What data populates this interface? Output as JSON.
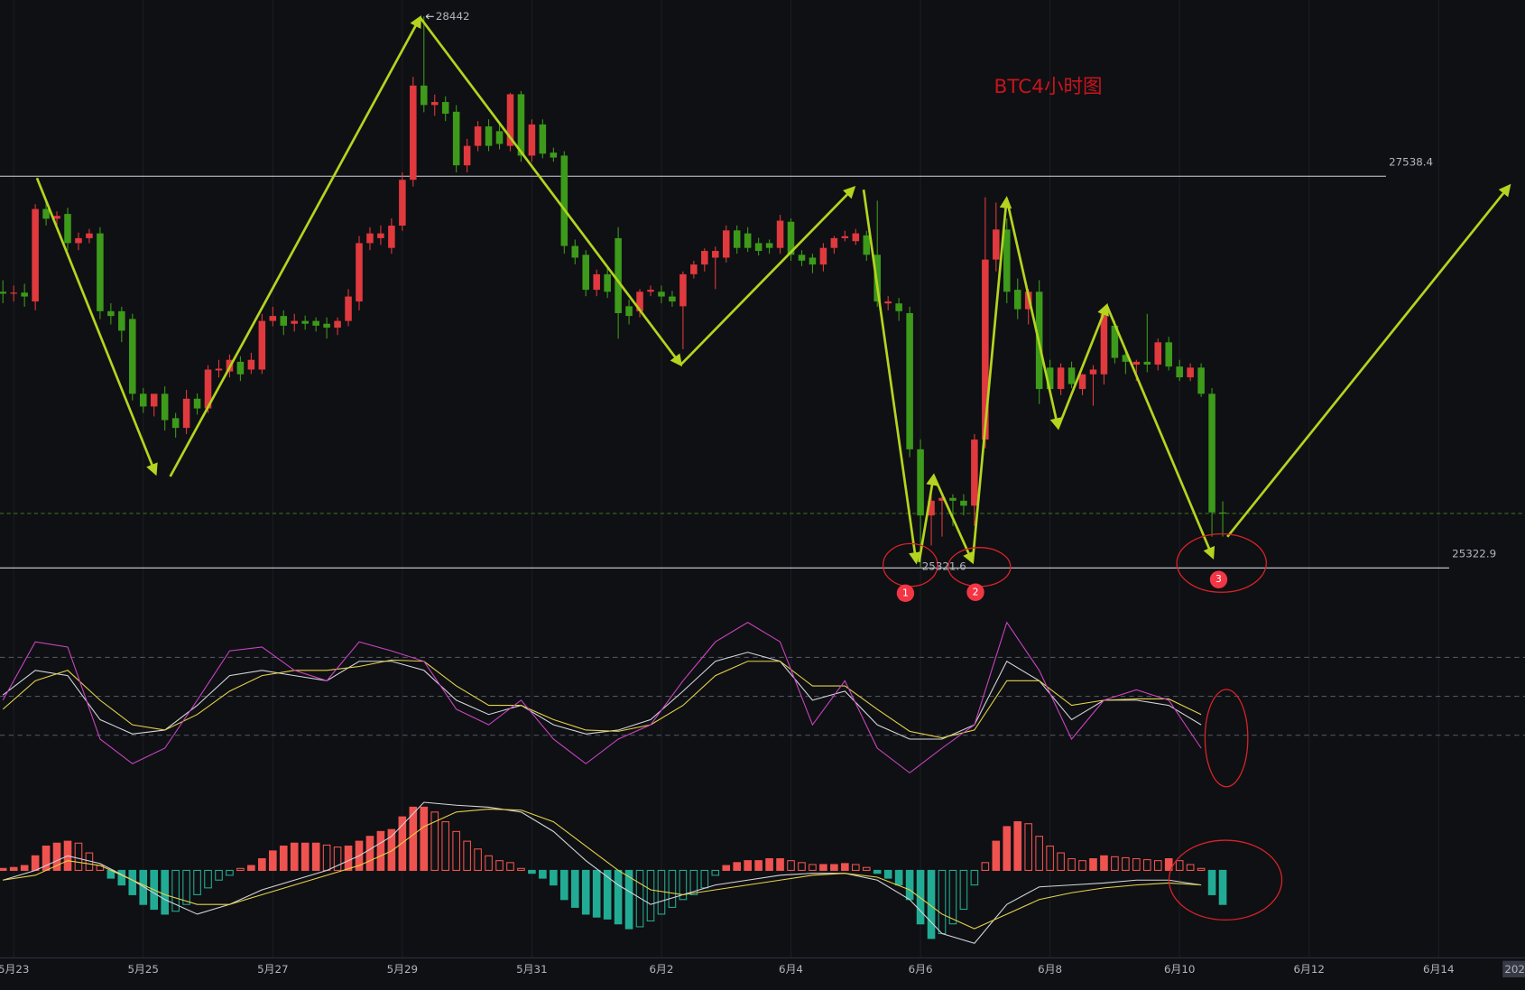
{
  "chart_data": [
    {
      "type": "candlestick",
      "title": "BTC4小时图",
      "up_color": "#e0393e",
      "down_color": "#3d9a1b",
      "xlim": [
        -0.27,
        141
      ],
      "ylim": [
        25125,
        28535
      ],
      "xticks": [
        {
          "value": 1,
          "label": "5月23"
        },
        {
          "value": 13,
          "label": "5月25"
        },
        {
          "value": 25,
          "label": "5月27"
        },
        {
          "value": 37,
          "label": "5月29"
        },
        {
          "value": 49,
          "label": "5月31"
        },
        {
          "value": 61,
          "label": "6月2"
        },
        {
          "value": 73,
          "label": "6月4"
        },
        {
          "value": 85,
          "label": "6月6"
        },
        {
          "value": 97,
          "label": "6月8"
        },
        {
          "value": 109,
          "label": "6月10"
        },
        {
          "value": 121,
          "label": "6月12"
        },
        {
          "value": 133,
          "label": "6月14"
        }
      ],
      "time_label": "202",
      "levels": [
        27538.4,
        25322.9
      ],
      "markers": [
        "1",
        "2",
        "3"
      ],
      "ohlc": [
        [
          26885,
          26950,
          26820,
          26874
        ],
        [
          26874,
          26920,
          26830,
          26880
        ],
        [
          26880,
          26930,
          26800,
          26858
        ],
        [
          26830,
          27380,
          26780,
          27353
        ],
        [
          27353,
          27400,
          27260,
          27298
        ],
        [
          27298,
          27340,
          27260,
          27314
        ],
        [
          27325,
          27360,
          27120,
          27160
        ],
        [
          27160,
          27220,
          27120,
          27188
        ],
        [
          27188,
          27240,
          27160,
          27215
        ],
        [
          27215,
          27250,
          26730,
          26775
        ],
        [
          26775,
          26820,
          26700,
          26748
        ],
        [
          26775,
          26800,
          26600,
          26665
        ],
        [
          26731,
          26760,
          26270,
          26308
        ],
        [
          26308,
          26340,
          26200,
          26236
        ],
        [
          26236,
          26300,
          26180,
          26308
        ],
        [
          26308,
          26350,
          26100,
          26159
        ],
        [
          26170,
          26200,
          26060,
          26115
        ],
        [
          26115,
          26330,
          26080,
          26280
        ],
        [
          26280,
          26310,
          26190,
          26225
        ],
        [
          26225,
          26470,
          26200,
          26445
        ],
        [
          26440,
          26500,
          26400,
          26450
        ],
        [
          26434,
          26530,
          26400,
          26500
        ],
        [
          26489,
          26520,
          26380,
          26418
        ],
        [
          26445,
          26540,
          26420,
          26500
        ],
        [
          26445,
          26760,
          26420,
          26720
        ],
        [
          26720,
          26800,
          26690,
          26748
        ],
        [
          26748,
          26780,
          26640,
          26693
        ],
        [
          26704,
          26760,
          26660,
          26720
        ],
        [
          26720,
          26750,
          26670,
          26704
        ],
        [
          26720,
          26740,
          26660,
          26693
        ],
        [
          26704,
          26740,
          26620,
          26682
        ],
        [
          26682,
          26740,
          26640,
          26720
        ],
        [
          26720,
          26900,
          26690,
          26858
        ],
        [
          26830,
          27200,
          26780,
          27160
        ],
        [
          27160,
          27250,
          27120,
          27215
        ],
        [
          27188,
          27260,
          27150,
          27215
        ],
        [
          27133,
          27300,
          27100,
          27259
        ],
        [
          27259,
          27560,
          27230,
          27518
        ],
        [
          27518,
          28100,
          27480,
          28051
        ],
        [
          28051,
          28442,
          27900,
          27941
        ],
        [
          27941,
          28000,
          27880,
          27958
        ],
        [
          27958,
          27990,
          27850,
          27892
        ],
        [
          27903,
          27940,
          27560,
          27600
        ],
        [
          27600,
          27750,
          27560,
          27710
        ],
        [
          27710,
          27850,
          27680,
          27820
        ],
        [
          27820,
          27860,
          27680,
          27710
        ],
        [
          27793,
          27830,
          27690,
          27721
        ],
        [
          27710,
          28010,
          27680,
          28002
        ],
        [
          28002,
          28020,
          27620,
          27655
        ],
        [
          27655,
          27860,
          27620,
          27831
        ],
        [
          27831,
          27860,
          27640,
          27666
        ],
        [
          27672,
          27700,
          27620,
          27644
        ],
        [
          27655,
          27680,
          27100,
          27144
        ],
        [
          27144,
          27180,
          27040,
          27078
        ],
        [
          27094,
          27120,
          26860,
          26896
        ],
        [
          26896,
          27010,
          26860,
          26984
        ],
        [
          26984,
          27020,
          26850,
          26885
        ],
        [
          27188,
          27250,
          26620,
          26764
        ],
        [
          26803,
          26840,
          26700,
          26748
        ],
        [
          26775,
          26900,
          26740,
          26885
        ],
        [
          26885,
          26920,
          26860,
          26896
        ],
        [
          26885,
          26920,
          26820,
          26858
        ],
        [
          26858,
          26890,
          26800,
          26830
        ],
        [
          26803,
          27000,
          26560,
          26984
        ],
        [
          26984,
          27060,
          26960,
          27039
        ],
        [
          27039,
          27130,
          27000,
          27116
        ],
        [
          27078,
          27140,
          26900,
          27116
        ],
        [
          27078,
          27260,
          27050,
          27232
        ],
        [
          27232,
          27260,
          27100,
          27133
        ],
        [
          27215,
          27250,
          27110,
          27133
        ],
        [
          27160,
          27190,
          27090,
          27116
        ],
        [
          27160,
          27180,
          27100,
          27133
        ],
        [
          27133,
          27320,
          27100,
          27287
        ],
        [
          27281,
          27300,
          27060,
          27094
        ],
        [
          27094,
          27120,
          27030,
          27061
        ],
        [
          27078,
          27100,
          26990,
          27039
        ],
        [
          27039,
          27160,
          27000,
          27133
        ],
        [
          27133,
          27200,
          27100,
          27188
        ],
        [
          27188,
          27230,
          27170,
          27199
        ],
        [
          27171,
          27240,
          27150,
          27215
        ],
        [
          27204,
          27230,
          27060,
          27094
        ],
        [
          27094,
          27400,
          26800,
          26830
        ],
        [
          26819,
          26860,
          26780,
          26830
        ],
        [
          26819,
          26850,
          26720,
          26775
        ],
        [
          26764,
          26800,
          25950,
          25994
        ],
        [
          25994,
          26050,
          25321.6,
          25620
        ],
        [
          25620,
          25760,
          25450,
          25703
        ],
        [
          25703,
          25740,
          25500,
          25719
        ],
        [
          25719,
          25740,
          25560,
          25703
        ],
        [
          25703,
          25740,
          25620,
          25675
        ],
        [
          25675,
          26080,
          25560,
          26049
        ],
        [
          26049,
          27420,
          26000,
          27067
        ],
        [
          27067,
          27390,
          27000,
          27237
        ],
        [
          27237,
          27300,
          26820,
          26885
        ],
        [
          26896,
          26960,
          26730,
          26786
        ],
        [
          26786,
          26900,
          26700,
          26885
        ],
        [
          26885,
          26950,
          26250,
          26335
        ],
        [
          26456,
          26500,
          26300,
          26335
        ],
        [
          26335,
          26480,
          26300,
          26456
        ],
        [
          26456,
          26490,
          26340,
          26363
        ],
        [
          26335,
          26420,
          26300,
          26418
        ],
        [
          26418,
          26470,
          26240,
          26445
        ],
        [
          26418,
          26800,
          26360,
          26775
        ],
        [
          26693,
          26720,
          26480,
          26511
        ],
        [
          26528,
          26560,
          26420,
          26489
        ],
        [
          26473,
          26500,
          26380,
          26489
        ],
        [
          26489,
          26760,
          26430,
          26473
        ],
        [
          26473,
          26620,
          26440,
          26599
        ],
        [
          26599,
          26630,
          26440,
          26462
        ],
        [
          26462,
          26500,
          26380,
          26401
        ],
        [
          26401,
          26480,
          26380,
          26456
        ],
        [
          26456,
          26480,
          26290,
          26308
        ],
        [
          26308,
          26340,
          25500,
          25637
        ],
        [
          25637,
          25700,
          25500,
          25631
        ]
      ]
    },
    {
      "type": "line",
      "ylim": [
        -13,
        114.5
      ],
      "levels": [
        80,
        50,
        20
      ],
      "x": [
        0,
        3,
        6,
        9,
        12,
        15,
        18,
        21,
        24,
        27,
        30,
        33,
        36,
        39,
        42,
        45,
        48,
        51,
        54,
        57,
        60,
        63,
        66,
        69,
        72,
        75,
        78,
        81,
        84,
        87,
        90,
        93,
        96,
        99,
        102,
        105,
        108,
        111
      ],
      "series": [
        {
          "color": "#d4d6dc",
          "values": [
            51,
            70,
            66,
            32,
            21,
            24,
            43,
            66,
            70,
            66,
            62,
            77,
            77,
            70,
            47,
            36,
            43,
            28,
            21,
            24,
            32,
            54,
            77,
            84,
            77,
            47,
            54,
            28,
            17,
            17,
            28,
            77,
            62,
            32,
            47,
            47,
            43,
            28
          ]
        },
        {
          "color": "#e6d34a",
          "values": [
            40,
            62,
            70,
            47,
            28,
            24,
            36,
            54,
            66,
            70,
            70,
            73,
            78,
            77,
            58,
            43,
            43,
            32,
            24,
            23,
            28,
            43,
            66,
            77,
            77,
            58,
            58,
            40,
            23,
            18,
            24,
            62,
            62,
            43,
            47,
            48,
            48,
            36
          ]
        },
        {
          "color": "#cc44c4",
          "values": [
            47,
            92,
            88,
            17,
            -2,
            10,
            47,
            85,
            88,
            70,
            62,
            92,
            85,
            77,
            40,
            28,
            47,
            17,
            -2,
            17,
            28,
            62,
            92,
            107,
            92,
            28,
            62,
            10,
            -9,
            10,
            28,
            107,
            70,
            17,
            47,
            55,
            47,
            10
          ]
        }
      ]
    },
    {
      "type": "macd",
      "ylim": [
        -80,
        75
      ],
      "up_color": "#ef5350",
      "down_color": "#22ab94",
      "histogram": [
        2,
        3,
        5,
        15,
        25,
        28,
        30,
        28,
        18,
        5,
        -8,
        -15,
        -25,
        -35,
        -40,
        -45,
        -42,
        -35,
        -25,
        -18,
        -10,
        -5,
        2,
        5,
        12,
        20,
        25,
        28,
        28,
        28,
        26,
        24,
        25,
        30,
        35,
        40,
        42,
        55,
        65,
        65,
        60,
        50,
        40,
        30,
        22,
        15,
        10,
        8,
        2,
        -3,
        -8,
        -15,
        -30,
        -38,
        -45,
        -48,
        -50,
        -55,
        -60,
        -58,
        -52,
        -45,
        -38,
        -30,
        -25,
        -18,
        -5,
        5,
        8,
        10,
        10,
        12,
        12,
        10,
        8,
        6,
        6,
        6,
        7,
        6,
        3,
        -3,
        -8,
        -15,
        -30,
        -55,
        -70,
        -65,
        -55,
        -40,
        -15,
        8,
        30,
        45,
        50,
        48,
        35,
        25,
        18,
        12,
        10,
        12,
        15,
        14,
        13,
        12,
        11,
        10,
        12,
        10,
        6,
        2,
        -25,
        -35
      ],
      "x": [
        0,
        3,
        6,
        9,
        12,
        15,
        18,
        21,
        24,
        27,
        30,
        33,
        36,
        39,
        42,
        45,
        48,
        51,
        54,
        57,
        60,
        63,
        66,
        69,
        72,
        75,
        78,
        81,
        84,
        87,
        90,
        93,
        96,
        99,
        102,
        105,
        108,
        111
      ],
      "series": [
        {
          "color": "#d4d6dc",
          "values": [
            -10,
            0,
            15,
            7,
            -10,
            -30,
            -45,
            -35,
            -20,
            -10,
            0,
            15,
            35,
            70,
            67,
            65,
            60,
            40,
            10,
            -15,
            -35,
            -25,
            -15,
            -10,
            -5,
            -3,
            -3,
            -10,
            -30,
            -65,
            -75,
            -35,
            -17,
            -15,
            -13,
            -10,
            -10,
            -15
          ]
        },
        {
          "color": "#e6d34a",
          "values": [
            -10,
            -5,
            10,
            5,
            -10,
            -25,
            -35,
            -35,
            -25,
            -15,
            -5,
            5,
            20,
            45,
            60,
            63,
            62,
            50,
            25,
            0,
            -20,
            -25,
            -20,
            -15,
            -10,
            -5,
            -3,
            -7,
            -20,
            -45,
            -60,
            -45,
            -30,
            -23,
            -18,
            -15,
            -13,
            -15
          ]
        }
      ]
    }
  ]
}
